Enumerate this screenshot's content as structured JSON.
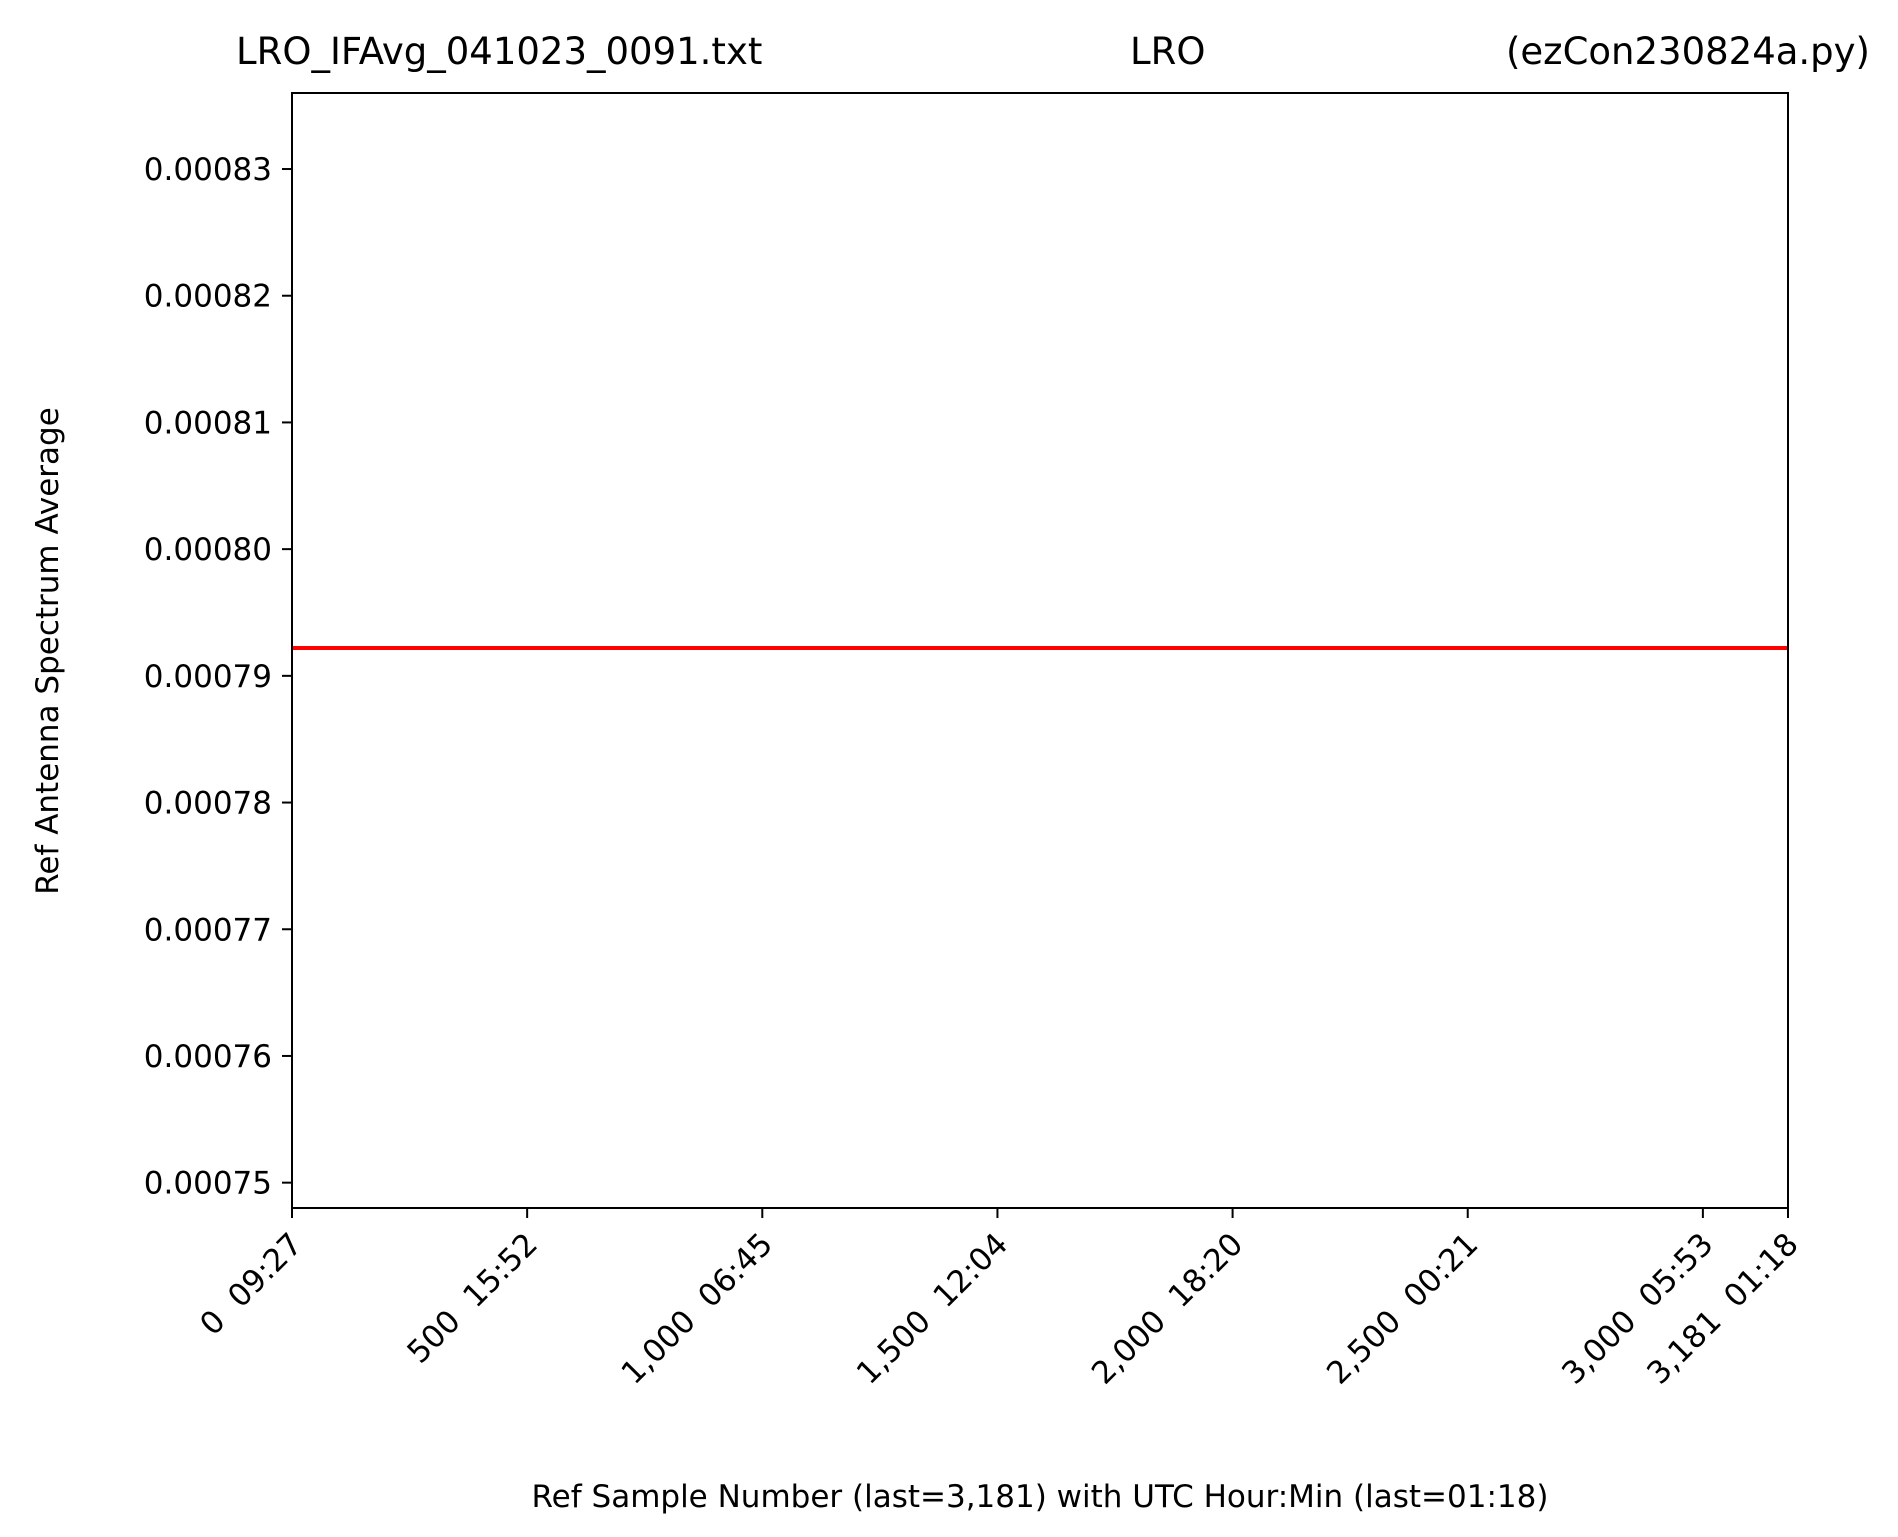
{
  "chart_data": {
    "type": "line",
    "title_parts": [
      "LRO_IFAvg_041023_0091.txt",
      "LRO",
      "(ezCon230824a.py)"
    ],
    "xlabel": "Ref Sample Number (last=3,181) with UTC Hour:Min (last=01:18)",
    "ylabel": "Ref Antenna Spectrum Average",
    "xlim": [
      0,
      3181
    ],
    "ylim": [
      0.000748,
      0.000836
    ],
    "x_ticks": [
      {
        "value": 0,
        "label": "0  09:27"
      },
      {
        "value": 500,
        "label": "500  15:52"
      },
      {
        "value": 1000,
        "label": "1,000  06:45"
      },
      {
        "value": 1500,
        "label": "1,500  12:04"
      },
      {
        "value": 2000,
        "label": "2,000  18:20"
      },
      {
        "value": 2500,
        "label": "2,500  00:21"
      },
      {
        "value": 3000,
        "label": "3,000  05:53"
      },
      {
        "value": 3181,
        "label": "3,181  01:18"
      }
    ],
    "y_ticks": [
      {
        "value": 0.00075,
        "label": "0.00075"
      },
      {
        "value": 0.00076,
        "label": "0.00076"
      },
      {
        "value": 0.00077,
        "label": "0.00077"
      },
      {
        "value": 0.00078,
        "label": "0.00078"
      },
      {
        "value": 0.00079,
        "label": "0.00079"
      },
      {
        "value": 0.0008,
        "label": "0.00080"
      },
      {
        "value": 0.00081,
        "label": "0.00081"
      },
      {
        "value": 0.00082,
        "label": "0.00082"
      },
      {
        "value": 0.00083,
        "label": "0.00083"
      }
    ],
    "series": [
      {
        "color": "#ff0000",
        "x": [
          0,
          3181
        ],
        "y": [
          0.0007922,
          0.0007922
        ]
      }
    ],
    "grid": false,
    "legend": "none"
  }
}
